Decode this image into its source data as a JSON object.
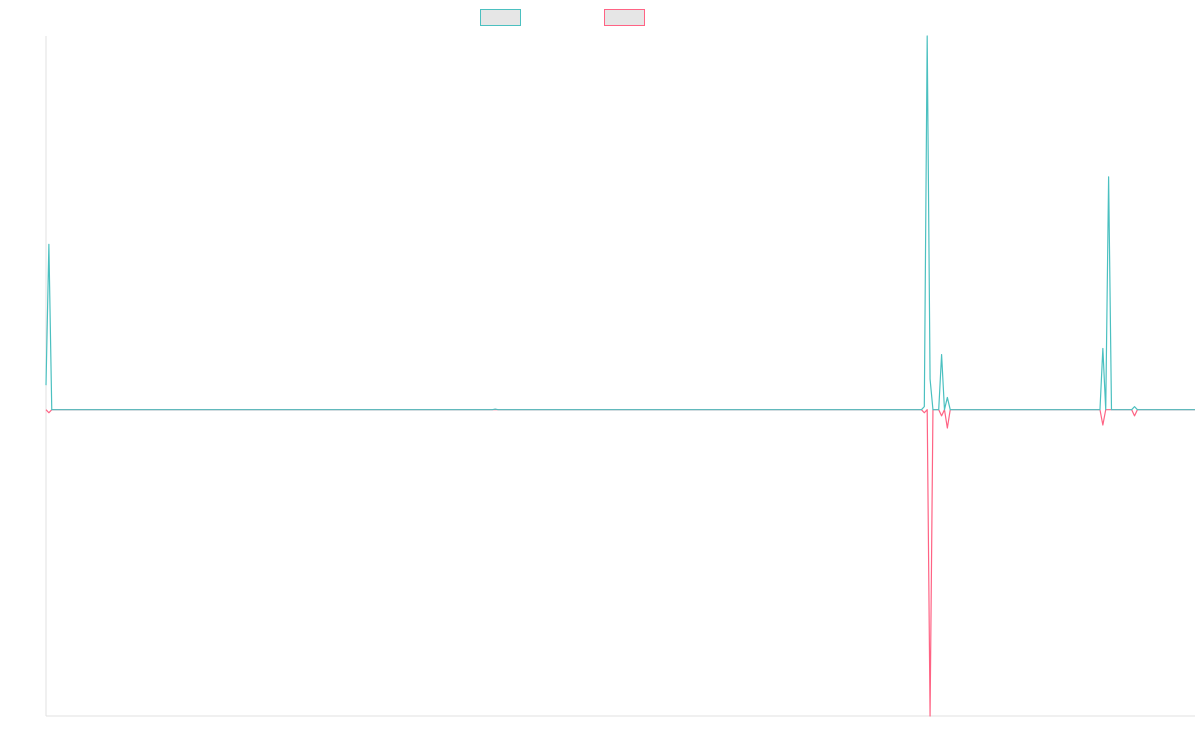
{
  "chart_data": {
    "type": "line",
    "title": "",
    "xlabel": "",
    "ylabel": "",
    "grid": false,
    "legend_position": "top-center",
    "x_count": 400,
    "ylim": [
      -1,
      1.22
    ],
    "series": [
      {
        "color": "#4bc0c0",
        "fill": "#e6e6e6",
        "values_sparse": [
          [
            0,
            0.08
          ],
          [
            1,
            0.54
          ],
          [
            2,
            0
          ],
          [
            156,
            0.002
          ],
          [
            305,
            0.01
          ],
          [
            306,
            1.22
          ],
          [
            307,
            0.1
          ],
          [
            311,
            0.18
          ],
          [
            312,
            0
          ],
          [
            313,
            0.04
          ],
          [
            314,
            0
          ],
          [
            366,
            0
          ],
          [
            367,
            0.2
          ],
          [
            368,
            0
          ],
          [
            369,
            0.76
          ],
          [
            370,
            0
          ],
          [
            377,
            0
          ],
          [
            378,
            0.01
          ],
          [
            379,
            0
          ]
        ]
      },
      {
        "color": "#ff6384",
        "fill": "#e6e6e6",
        "values_sparse": [
          [
            0,
            0
          ],
          [
            1,
            -0.01
          ],
          [
            2,
            0
          ],
          [
            305,
            -0.01
          ],
          [
            307,
            -1.0
          ],
          [
            308,
            0
          ],
          [
            311,
            -0.02
          ],
          [
            312,
            0
          ],
          [
            313,
            -0.06
          ],
          [
            314,
            0
          ],
          [
            366,
            0
          ],
          [
            367,
            -0.05
          ],
          [
            368,
            0
          ],
          [
            377,
            0
          ],
          [
            378,
            -0.02
          ],
          [
            379,
            0
          ]
        ]
      }
    ]
  }
}
